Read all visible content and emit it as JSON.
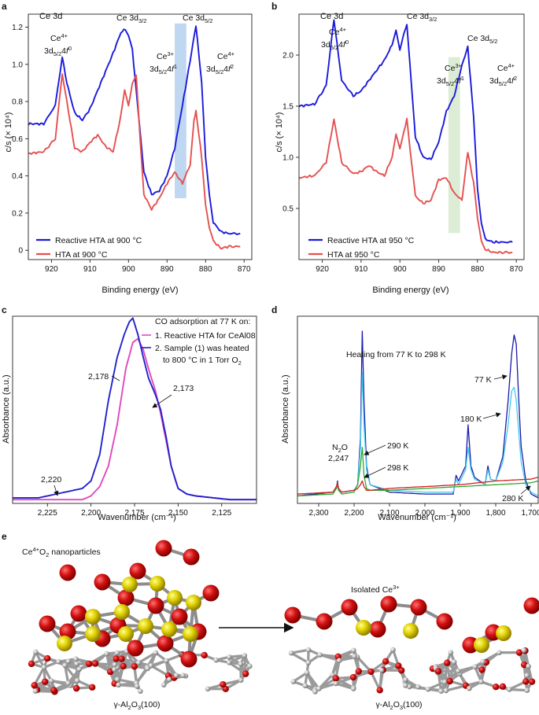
{
  "figure": {
    "panel_labels": [
      "a",
      "b",
      "c",
      "d",
      "e"
    ]
  },
  "chart_data": [
    {
      "id": "a",
      "type": "line",
      "title": "Ce 3d",
      "xlabel": "Binding energy (eV)",
      "ylabel": "c/s (× 10⁴)",
      "xlim": [
        926,
        868
      ],
      "ylim": [
        -0.05,
        1.27
      ],
      "xticks": [
        "920",
        "910",
        "900",
        "890",
        "880",
        "870"
      ],
      "xtick_values": [
        920,
        910,
        900,
        890,
        880,
        870
      ],
      "yticks": [
        "0",
        "0.2",
        "0.4",
        "0.6",
        "0.8",
        "1.0",
        "1.2"
      ],
      "ytick_values": [
        0,
        0.2,
        0.4,
        0.6,
        0.8,
        1.0,
        1.2
      ],
      "highlight": {
        "from": 888,
        "to": 885,
        "color": "#b8d3ee",
        "ymin": 0.28,
        "ymax": 1.22
      },
      "annotations": [
        {
          "text": "Ce4+ 3d5/24f0",
          "at": "peak 917"
        },
        {
          "text": "Ce 3d3/2",
          "at": "peak 901"
        },
        {
          "text": "Ce3+ 3d5/24f1",
          "at": "886"
        },
        {
          "text": "Ce 3d5/2",
          "at": "peak 883"
        },
        {
          "text": "Ce4+ 3d5/24f2",
          "at": "882"
        }
      ],
      "series": [
        {
          "name": "Reactive HTA at 900 °C",
          "color": "#1a1adb",
          "x": [
            926,
            922,
            919,
            917.2,
            916,
            914,
            912,
            910,
            908,
            906,
            904,
            902,
            900.8,
            900,
            899,
            897.5,
            896,
            894,
            892,
            890,
            888,
            886,
            884,
            882.5,
            881,
            880,
            879,
            878,
            876,
            874,
            871
          ],
          "y": [
            0.68,
            0.68,
            0.78,
            1.04,
            0.9,
            0.74,
            0.7,
            0.76,
            0.86,
            0.96,
            1.06,
            1.17,
            1.19,
            1.15,
            1.08,
            0.75,
            0.42,
            0.3,
            0.32,
            0.4,
            0.55,
            0.78,
            1.02,
            1.21,
            0.9,
            0.5,
            0.3,
            0.15,
            0.1,
            0.09,
            0.09
          ]
        },
        {
          "name": "HTA at 900 °C",
          "color": "#e55050",
          "x": [
            926,
            922,
            919,
            917.2,
            916,
            914,
            912,
            910,
            908,
            906,
            904,
            902,
            901,
            900,
            899,
            898,
            897,
            896,
            894,
            892,
            890,
            888,
            886,
            884,
            883,
            882.5,
            881,
            880,
            879,
            878,
            876,
            874,
            871
          ],
          "y": [
            0.52,
            0.53,
            0.6,
            0.95,
            0.8,
            0.55,
            0.53,
            0.58,
            0.62,
            0.56,
            0.53,
            0.72,
            0.86,
            0.78,
            0.9,
            0.94,
            0.6,
            0.3,
            0.22,
            0.28,
            0.36,
            0.42,
            0.36,
            0.46,
            0.7,
            0.75,
            0.5,
            0.25,
            0.12,
            0.05,
            0.01,
            0.02,
            0.02
          ]
        }
      ],
      "legend": "bottom-left"
    },
    {
      "id": "b",
      "type": "line",
      "title": "Ce 3d",
      "xlabel": "Binding energy (eV)",
      "ylabel": "c/s (× 10⁴)",
      "xlim": [
        926,
        868
      ],
      "ylim": [
        0,
        2.4
      ],
      "xticks": [
        "920",
        "910",
        "900",
        "890",
        "880",
        "870"
      ],
      "xtick_values": [
        920,
        910,
        900,
        890,
        880,
        870
      ],
      "yticks": [
        "0.5",
        "1.0",
        "1.5",
        "2.0"
      ],
      "ytick_values": [
        0.5,
        1.0,
        1.5,
        2.0
      ],
      "highlight": {
        "from": 887.5,
        "to": 884.5,
        "color": "#d8ead0",
        "ymin": 0.26,
        "ymax": 1.98
      },
      "annotations": [
        {
          "text": "Ce4+ 3d5/24f0",
          "at": "peak 917"
        },
        {
          "text": "Ce 3d3/2",
          "at": "peak 899"
        },
        {
          "text": "Ce3+ 3d5/24f1",
          "at": "886"
        },
        {
          "text": "Ce 3d5/2",
          "at": "peak 882.5"
        },
        {
          "text": "Ce4+ 3d5/24f2",
          "at": "882"
        }
      ],
      "series": [
        {
          "name": "Reactive HTA at 950 °C",
          "color": "#1a1adb",
          "x": [
            926,
            922,
            919,
            917,
            915,
            912,
            910,
            908,
            906,
            904,
            902,
            901,
            900,
            899,
            898.2,
            897,
            896,
            894,
            892,
            890,
            888,
            886,
            884,
            882.5,
            881,
            880,
            879,
            878,
            876,
            874,
            871
          ],
          "y": [
            1.5,
            1.52,
            1.7,
            2.35,
            1.75,
            1.6,
            1.65,
            1.75,
            1.85,
            1.95,
            2.1,
            2.25,
            2.05,
            2.2,
            2.3,
            1.7,
            1.2,
            1.0,
            0.98,
            1.15,
            1.45,
            1.6,
            1.9,
            2.08,
            1.4,
            0.7,
            0.35,
            0.2,
            0.17,
            0.17,
            0.17
          ]
        },
        {
          "name": "HTA at 950 °C",
          "color": "#e55050",
          "x": [
            926,
            922,
            919,
            917,
            915,
            912,
            910,
            908,
            906,
            904,
            902,
            901,
            900,
            899,
            898.2,
            897,
            896,
            894,
            892,
            890,
            888,
            886,
            884,
            883,
            882.5,
            881,
            880,
            879,
            878,
            876,
            874,
            871
          ],
          "y": [
            0.8,
            0.82,
            0.95,
            1.37,
            0.95,
            0.84,
            0.86,
            0.92,
            0.86,
            0.82,
            1.0,
            1.22,
            1.08,
            1.25,
            1.37,
            0.95,
            0.62,
            0.55,
            0.58,
            0.78,
            0.8,
            0.65,
            0.58,
            0.9,
            1.05,
            0.75,
            0.4,
            0.18,
            0.1,
            0.07,
            0.07,
            0.07
          ]
        }
      ],
      "legend": "bottom-left"
    },
    {
      "id": "c",
      "type": "line",
      "xlabel": "Wavenumber (cm⁻¹)",
      "ylabel": "Absorbance (a.u.)",
      "xlim": [
        2245,
        2105
      ],
      "ylim": [
        0,
        1.0
      ],
      "xticks": [
        "2,225",
        "2,200",
        "2,175",
        "2,150",
        "2,125"
      ],
      "xtick_values": [
        2225,
        2200,
        2175,
        2150,
        2125
      ],
      "legend_title": "CO adsorption at 77 K on:",
      "annotations": [
        {
          "text": "2,178",
          "at": 2178
        },
        {
          "text": "2,173",
          "at": 2173
        },
        {
          "text": "2,220",
          "at": 2220
        }
      ],
      "series": [
        {
          "name": "1. Reactive HTA for CeAl08",
          "color": "#e048c0",
          "x": [
            2245,
            2220,
            2205,
            2200,
            2195,
            2190,
            2185,
            2180,
            2176,
            2173,
            2170,
            2167,
            2163,
            2160,
            2157,
            2154,
            2150,
            2145,
            2140,
            2130,
            2120,
            2105
          ],
          "y": [
            0.02,
            0.02,
            0.02,
            0.04,
            0.09,
            0.2,
            0.42,
            0.72,
            0.86,
            0.88,
            0.82,
            0.72,
            0.6,
            0.48,
            0.34,
            0.2,
            0.08,
            0.05,
            0.04,
            0.03,
            0.02,
            0.02
          ]
        },
        {
          "name": "2. Sample (1) was heated to 800 °C in 1 Torr O2",
          "color": "#2222cc",
          "x": [
            2245,
            2230,
            2220,
            2215,
            2205,
            2200,
            2195,
            2190,
            2185,
            2181,
            2178,
            2176,
            2173,
            2170,
            2167,
            2163,
            2160,
            2157,
            2154,
            2150,
            2145,
            2140,
            2130,
            2120,
            2105
          ],
          "y": [
            0.03,
            0.03,
            0.05,
            0.06,
            0.08,
            0.12,
            0.26,
            0.55,
            0.78,
            0.9,
            0.97,
            0.99,
            0.9,
            0.78,
            0.67,
            0.58,
            0.5,
            0.36,
            0.2,
            0.08,
            0.05,
            0.04,
            0.03,
            0.02,
            0.02
          ]
        }
      ],
      "legend": "top-right"
    },
    {
      "id": "d",
      "type": "line",
      "title": "Heating from 77 K to 298 K",
      "xlabel": "Wavenumber (cm⁻¹)",
      "ylabel": "Absorbance (a.u.)",
      "xlim": [
        2360,
        1680
      ],
      "ylim": [
        0,
        1.0
      ],
      "xticks": [
        "2,300",
        "2,200",
        "2,100",
        "2,000",
        "1,900",
        "1,800",
        "1,700"
      ],
      "xtick_values": [
        2300,
        2200,
        2100,
        2000,
        1900,
        1800,
        1700
      ],
      "annotations": [
        {
          "text": "N2O 2,247",
          "at": 2247
        },
        {
          "text": "290 K",
          "at": 2185
        },
        {
          "text": "298 K",
          "at": 2175
        },
        {
          "text": "77 K",
          "at": 1750
        },
        {
          "text": "180 K",
          "at": 1760
        },
        {
          "text": "280 K",
          "at": 1700
        }
      ],
      "series": [
        {
          "name": "77 K",
          "color": "#1a1aaa",
          "x": [
            2360,
            2260,
            2250,
            2247,
            2244,
            2235,
            2200,
            2190,
            2182,
            2177,
            2172,
            2165,
            2155,
            2100,
            2000,
            1920,
            1912,
            1905,
            1895,
            1885,
            1878,
            1870,
            1860,
            1830,
            1822,
            1815,
            1800,
            1780,
            1765,
            1755,
            1748,
            1742,
            1735,
            1728,
            1715,
            1700,
            1680
          ],
          "y": [
            0.04,
            0.06,
            0.08,
            0.12,
            0.08,
            0.06,
            0.07,
            0.1,
            0.35,
            0.92,
            0.55,
            0.2,
            0.1,
            0.06,
            0.05,
            0.05,
            0.15,
            0.12,
            0.16,
            0.2,
            0.42,
            0.2,
            0.14,
            0.1,
            0.2,
            0.13,
            0.12,
            0.25,
            0.55,
            0.8,
            0.9,
            0.85,
            0.55,
            0.3,
            0.12,
            0.05,
            0.03
          ]
        },
        {
          "name": "180 K",
          "color": "#40ccee",
          "x": [
            2360,
            2260,
            2250,
            2247,
            2244,
            2235,
            2200,
            2190,
            2182,
            2177,
            2172,
            2165,
            2155,
            2100,
            2000,
            1920,
            1912,
            1905,
            1895,
            1885,
            1878,
            1870,
            1860,
            1830,
            1822,
            1815,
            1800,
            1780,
            1765,
            1755,
            1748,
            1742,
            1735,
            1728,
            1715,
            1700,
            1680
          ],
          "y": [
            0.05,
            0.06,
            0.08,
            0.11,
            0.08,
            0.06,
            0.07,
            0.1,
            0.3,
            0.7,
            0.42,
            0.18,
            0.1,
            0.07,
            0.06,
            0.06,
            0.13,
            0.1,
            0.14,
            0.18,
            0.3,
            0.18,
            0.13,
            0.1,
            0.18,
            0.13,
            0.12,
            0.22,
            0.42,
            0.6,
            0.62,
            0.55,
            0.38,
            0.22,
            0.1,
            0.06,
            0.04
          ]
        },
        {
          "name": "290 K",
          "color": "#2ea82e",
          "x": [
            2360,
            2260,
            2250,
            2247,
            2244,
            2235,
            2200,
            2190,
            2182,
            2177,
            2172,
            2165,
            2155,
            2100,
            2000,
            1900,
            1800,
            1700,
            1680
          ],
          "y": [
            0.04,
            0.05,
            0.08,
            0.1,
            0.07,
            0.05,
            0.06,
            0.1,
            0.2,
            0.3,
            0.15,
            0.08,
            0.07,
            0.07,
            0.08,
            0.09,
            0.1,
            0.11,
            0.12
          ]
        },
        {
          "name": "298 K",
          "color": "#d62020",
          "x": [
            2360,
            2260,
            2250,
            2247,
            2244,
            2235,
            2200,
            2190,
            2182,
            2177,
            2172,
            2165,
            2155,
            2100,
            2000,
            1900,
            1800,
            1700,
            1680
          ],
          "y": [
            0.05,
            0.06,
            0.09,
            0.11,
            0.08,
            0.06,
            0.07,
            0.08,
            0.1,
            0.12,
            0.09,
            0.07,
            0.07,
            0.08,
            0.09,
            0.1,
            0.12,
            0.13,
            0.14
          ]
        }
      ],
      "legend": "none"
    }
  ],
  "panel_e": {
    "left_title_prefix": "Ce",
    "left_title_sup": "4+",
    "left_title_mid": "O",
    "left_title_sub": "2",
    "left_title_suffix": " nanoparticles",
    "right_title_prefix": "Isolated Ce",
    "right_title_sup": "3+",
    "substrate_left": "γ-Al2O3(100)",
    "substrate_right": "γ-Al2O3(100)"
  }
}
